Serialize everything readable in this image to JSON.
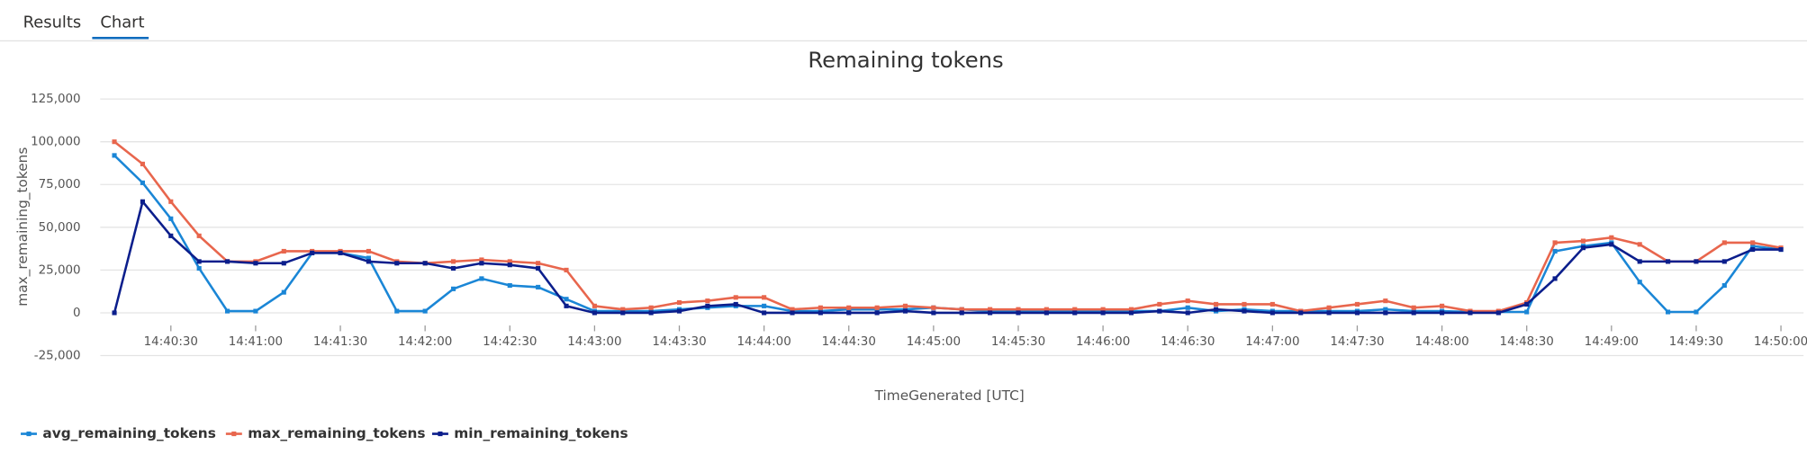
{
  "tabs": [
    "Results",
    "Chart"
  ],
  "chart_data": {
    "type": "line",
    "title": "Remaining tokens",
    "x_label": "TimeGenerated [UTC]",
    "y_label": "max_remaining_tokens",
    "x": [
      "14:40:10",
      "14:40:20",
      "14:40:30",
      "14:40:40",
      "14:40:50",
      "14:41:00",
      "14:41:10",
      "14:41:20",
      "14:41:30",
      "14:41:40",
      "14:41:50",
      "14:42:00",
      "14:42:10",
      "14:42:20",
      "14:42:30",
      "14:42:40",
      "14:42:50",
      "14:43:00",
      "14:43:10",
      "14:43:20",
      "14:43:30",
      "14:43:40",
      "14:43:50",
      "14:44:00",
      "14:44:10",
      "14:44:20",
      "14:44:30",
      "14:44:40",
      "14:44:50",
      "14:45:00",
      "14:45:10",
      "14:45:20",
      "14:45:30",
      "14:45:40",
      "14:45:50",
      "14:46:00",
      "14:46:10",
      "14:46:20",
      "14:46:30",
      "14:46:40",
      "14:46:50",
      "14:47:00",
      "14:47:10",
      "14:47:20",
      "14:47:30",
      "14:47:40",
      "14:47:50",
      "14:48:00",
      "14:48:10",
      "14:48:20",
      "14:48:30",
      "14:48:40",
      "14:48:50",
      "14:49:00",
      "14:49:10",
      "14:49:20",
      "14:49:30",
      "14:49:40",
      "14:49:50",
      "14:50:00"
    ],
    "series": [
      {
        "name": "avg_remaining_tokens",
        "color": "#1a86d6",
        "values": [
          92000,
          76000,
          55000,
          26000,
          1000,
          1000,
          12000,
          35000,
          35000,
          32000,
          1000,
          1000,
          14000,
          20000,
          16000,
          15000,
          8000,
          1000,
          1000,
          1000,
          2000,
          3000,
          4000,
          4000,
          1000,
          1000,
          2000,
          2000,
          2000,
          3000,
          2000,
          1000,
          1000,
          1000,
          1000,
          1000,
          1000,
          1000,
          3000,
          1000,
          2000,
          1000,
          1000,
          1000,
          1000,
          2000,
          1000,
          1000,
          500,
          500,
          500,
          36000,
          39000,
          41000,
          18000,
          500,
          500,
          16000,
          39000,
          37000
        ]
      },
      {
        "name": "max_remaining_tokens",
        "color": "#e8664d",
        "values": [
          100000,
          87000,
          65000,
          45000,
          30000,
          30000,
          36000,
          36000,
          36000,
          36000,
          30000,
          29000,
          30000,
          31000,
          30000,
          29000,
          25000,
          4000,
          2000,
          3000,
          6000,
          7000,
          9000,
          9000,
          2000,
          3000,
          3000,
          3000,
          4000,
          3000,
          2000,
          2000,
          2000,
          2000,
          2000,
          2000,
          2000,
          5000,
          7000,
          5000,
          5000,
          5000,
          1000,
          3000,
          5000,
          7000,
          3000,
          4000,
          1000,
          1000,
          6000,
          41000,
          42000,
          44000,
          40000,
          30000,
          30000,
          41000,
          41000,
          38000
        ]
      },
      {
        "name": "min_remaining_tokens",
        "color": "#0b1e8c",
        "values": [
          0,
          65000,
          45000,
          30000,
          30000,
          29000,
          29000,
          35000,
          35000,
          30000,
          29000,
          29000,
          26000,
          29000,
          28000,
          26000,
          4000,
          0,
          0,
          0,
          1000,
          4000,
          5000,
          0,
          0,
          0,
          0,
          0,
          1000,
          0,
          0,
          0,
          0,
          0,
          0,
          0,
          0,
          1000,
          0,
          2000,
          1000,
          0,
          0,
          0,
          0,
          0,
          0,
          0,
          0,
          0,
          5000,
          20000,
          38000,
          40000,
          30000,
          30000,
          30000,
          30000,
          37000,
          37000
        ]
      }
    ],
    "xlim": [
      "14:40:05",
      "14:50:08"
    ],
    "xticks": [
      "14:40:30",
      "14:41:00",
      "14:41:30",
      "14:42:00",
      "14:42:30",
      "14:43:00",
      "14:43:30",
      "14:44:00",
      "14:44:30",
      "14:45:00",
      "14:45:30",
      "14:46:00",
      "14:46:30",
      "14:47:00",
      "14:47:30",
      "14:48:00",
      "14:48:30",
      "14:49:00",
      "14:49:30",
      "14:50:00"
    ],
    "ylim": [
      -25000,
      125000
    ],
    "yticks": [
      {
        "value": -25000,
        "label": "-25,000"
      },
      0,
      {
        "value": 25000,
        "label": "25,000"
      },
      {
        "value": 50000,
        "label": "50,000"
      },
      {
        "value": 75000,
        "label": "75,000"
      },
      {
        "value": 100000,
        "label": "100,000"
      },
      {
        "value": 125000,
        "label": "125,000"
      }
    ],
    "grid": true,
    "legend": "bottom-left"
  }
}
